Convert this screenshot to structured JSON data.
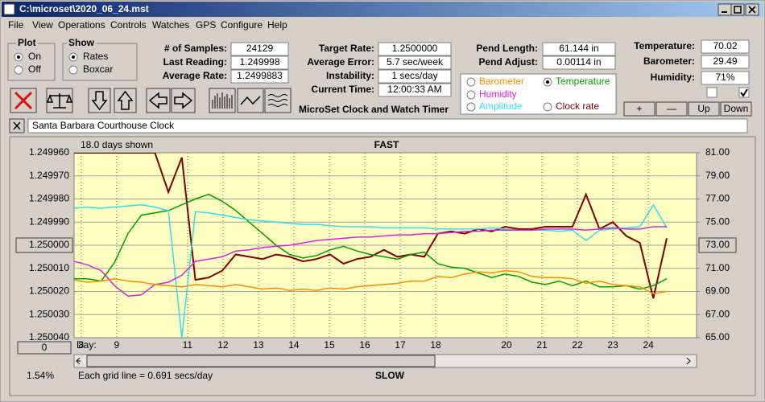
{
  "window": {
    "title": "C:\\microset\\2020_06_24.mst"
  },
  "menu": [
    "File",
    "View",
    "Operations",
    "Controls",
    "Watches",
    "GPS",
    "Configure",
    "Help"
  ],
  "plot_group": {
    "title": "Plot",
    "options": [
      "On",
      "Off"
    ]
  },
  "show_group": {
    "title": "Show",
    "options": [
      "Rates",
      "Boxcar"
    ]
  },
  "stats": [
    {
      "label": "# of Samples:",
      "value": "24129"
    },
    {
      "label": "Last Reading:",
      "value": "1.249998"
    },
    {
      "label": "Average Rate:",
      "value": "1.2499883"
    }
  ],
  "rates": [
    {
      "label": "Target Rate:",
      "value": "1.2500000"
    },
    {
      "label": "Average Error:",
      "value": "5.7 sec/week"
    },
    {
      "label": "Instability:",
      "value": "1 secs/day"
    },
    {
      "label": "Current Time:",
      "value": "12:00:33 AM"
    }
  ],
  "pendulum": [
    {
      "label": "Pend Length:",
      "value": "61.144 in"
    },
    {
      "label": "Pend Adjust:",
      "value": "0.00114 in"
    }
  ],
  "environment": [
    {
      "label": "Temperature:",
      "value": "70.02"
    },
    {
      "label": "Barometer:",
      "value": "29.49"
    },
    {
      "label": "Humidity:",
      "value": "71%"
    }
  ],
  "buttons": [
    "+",
    "—",
    "Up",
    "Down"
  ],
  "app_name": "MicroSet Clock and Watch Timer",
  "clock_name": "Santa Barbara Courthouse Clock",
  "chart_data": {
    "type": "line",
    "header_left": "18.0 days shown",
    "top_label": "FAST",
    "bottom_label": "SLOW",
    "x_label": "Day:",
    "footer_left": "1.54%",
    "footer_note": "Each grid line = 0.691 secs/day",
    "reset_button": "0",
    "xlim": [
      7.8,
      25.36
    ],
    "xticks": [
      8,
      9,
      11,
      12,
      13,
      14,
      15,
      16,
      17,
      18,
      20,
      21,
      22,
      23,
      24
    ],
    "ylim": [
      1.25004,
      1.24996
    ],
    "yticks": [
      {
        "value": 1.24996,
        "label": "1.249960"
      },
      {
        "value": 1.24997,
        "label": "1.249970"
      },
      {
        "value": 1.24998,
        "label": "1.249980"
      },
      {
        "value": 1.24999,
        "label": "1.249990"
      },
      {
        "value": 1.25,
        "label": "1.250000"
      },
      {
        "value": 1.25001,
        "label": "1.250010"
      },
      {
        "value": 1.25002,
        "label": "1.250020"
      },
      {
        "value": 1.25003,
        "label": "1.250030"
      },
      {
        "value": 1.25004,
        "label": "1.250040"
      }
    ],
    "y2lim": [
      65,
      81
    ],
    "y2ticks": [
      {
        "value": 81,
        "label": "81.00"
      },
      {
        "value": 79,
        "label": "79.00"
      },
      {
        "value": 77,
        "label": "77.00"
      },
      {
        "value": 75,
        "label": "75.00"
      },
      {
        "value": 73,
        "label": "73.00"
      },
      {
        "value": 71,
        "label": "71.00"
      },
      {
        "value": 69,
        "label": "69.00"
      },
      {
        "value": 67,
        "label": "67.00"
      },
      {
        "value": 65,
        "label": "65.00"
      }
    ],
    "grid": true,
    "x": [
      7.8,
      8.18,
      8.56,
      8.94,
      9.32,
      9.7,
      10.08,
      10.46,
      10.84,
      11.22,
      11.6,
      11.98,
      12.36,
      12.74,
      13.12,
      13.5,
      13.88,
      14.26,
      14.64,
      15.02,
      15.4,
      15.78,
      16.16,
      16.54,
      16.92,
      17.3,
      17.68,
      18.06,
      18.44,
      18.82,
      19.2,
      19.58,
      19.96,
      20.34,
      20.72,
      21.1,
      21.48,
      21.86,
      22.24,
      22.62,
      23,
      23.38,
      23.76,
      24.14,
      24.52
    ],
    "series": [
      {
        "name": "Clock rate",
        "color": "#800000",
        "values": [
          1.24996,
          1.24996,
          1.24996,
          1.24996,
          1.24996,
          1.24996,
          1.24996,
          1.249977,
          1.249962,
          1.250015,
          1.250014,
          1.250011,
          1.250004,
          1.250005,
          1.250006,
          1.250004,
          1.250005,
          1.250007,
          1.250006,
          1.250004,
          1.250008,
          1.250006,
          1.250005,
          1.250002,
          1.250005,
          1.250004,
          1.250005,
          1.249995,
          1.249994,
          1.249995,
          1.249993,
          1.249994,
          1.249992,
          1.249993,
          1.249993,
          1.249992,
          1.249992,
          1.249992,
          1.249978,
          1.249993,
          1.24999,
          1.249996,
          1.249999,
          1.250023,
          1.249997
        ]
      },
      {
        "name": "Temperature",
        "color": "#00a000",
        "axis": "y2",
        "checked": true,
        "values": [
          70.1,
          70.1,
          69.9,
          71.5,
          74.0,
          75.6,
          75.8,
          76.0,
          76.5,
          77.0,
          77.4,
          76.8,
          76.0,
          75.0,
          74.0,
          73.0,
          72.2,
          71.9,
          72.1,
          72.6,
          72.9,
          72.5,
          72.2,
          72.0,
          71.8,
          72.2,
          72.4,
          71.4,
          71.1,
          71.0,
          70.6,
          70.2,
          70.5,
          70.3,
          69.8,
          69.6,
          69.9,
          69.5,
          69.9,
          69.4,
          69.4,
          69.5,
          69.2,
          69.5,
          70.1
        ]
      },
      {
        "name": "Amplitude",
        "color": "#30e0f0",
        "axis": "y2",
        "values": [
          76.2,
          76.3,
          76.2,
          76.3,
          76.4,
          76.5,
          76.3,
          76.0,
          65.0,
          75.9,
          75.8,
          75.6,
          75.4,
          75.2,
          75.1,
          75.0,
          74.9,
          74.8,
          74.8,
          74.7,
          74.6,
          74.6,
          74.6,
          74.5,
          74.5,
          74.5,
          74.5,
          74.4,
          74.4,
          74.4,
          74.4,
          74.5,
          74.4,
          74.3,
          74.3,
          74.3,
          74.2,
          74.3,
          73.4,
          74.3,
          74.4,
          74.5,
          74.6,
          76.5,
          74.5
        ]
      },
      {
        "name": "Humidity",
        "color": "#e020e0",
        "axis": "y2",
        "values": [
          71.6,
          71.3,
          70.8,
          69.5,
          68.6,
          68.7,
          69.6,
          69.8,
          70.4,
          71.6,
          71.8,
          72.0,
          72.5,
          72.6,
          72.8,
          72.9,
          73.0,
          73.2,
          73.4,
          73.5,
          73.6,
          73.7,
          73.7,
          73.8,
          73.9,
          73.9,
          74.0,
          74.0,
          74.1,
          74.2,
          74.2,
          74.3,
          74.3,
          74.3,
          74.3,
          74.4,
          74.4,
          74.4,
          74.3,
          74.4,
          74.5,
          74.4,
          74.4,
          74.6,
          74.6
        ]
      },
      {
        "name": "Barometer",
        "color": "#ff8c00",
        "axis": "y2",
        "values": [
          70.0,
          69.8,
          69.9,
          70.1,
          69.9,
          69.8,
          69.6,
          69.5,
          69.4,
          69.6,
          69.5,
          69.4,
          69.6,
          69.4,
          69.2,
          69.3,
          69.1,
          69.2,
          69.1,
          69.3,
          69.2,
          69.4,
          69.5,
          69.6,
          69.7,
          69.9,
          69.9,
          70.3,
          70.2,
          70.5,
          70.7,
          70.6,
          70.8,
          70.7,
          70.3,
          70.2,
          70.2,
          70.1,
          69.7,
          69.9,
          69.6,
          69.5,
          69.4,
          68.8,
          69.0
        ]
      }
    ]
  }
}
